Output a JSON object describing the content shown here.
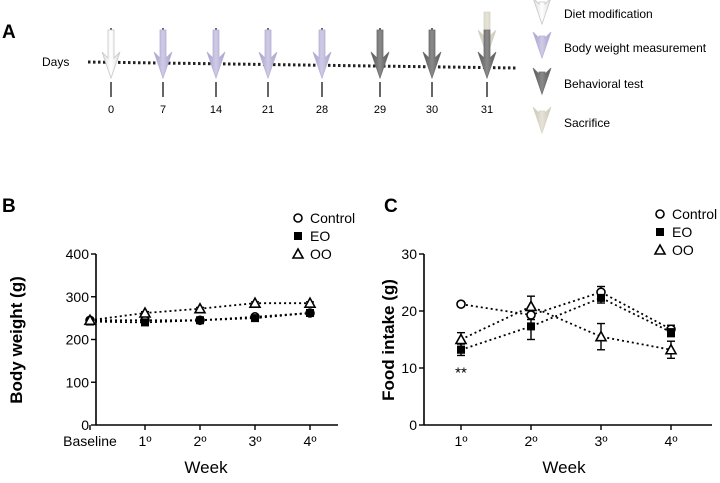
{
  "timeline": {
    "panel_letter": "A",
    "axis_label": "Days",
    "days": [
      "0",
      "7",
      "14",
      "21",
      "28",
      "29",
      "30",
      "31"
    ],
    "events": [
      {
        "day_index": 0,
        "kinds": [
          "diet"
        ]
      },
      {
        "day_index": 1,
        "kinds": [
          "weight"
        ]
      },
      {
        "day_index": 2,
        "kinds": [
          "weight"
        ]
      },
      {
        "day_index": 3,
        "kinds": [
          "weight"
        ]
      },
      {
        "day_index": 4,
        "kinds": [
          "weight"
        ]
      },
      {
        "day_index": 5,
        "kinds": [
          "behavior"
        ]
      },
      {
        "day_index": 6,
        "kinds": [
          "behavior"
        ]
      },
      {
        "day_index": 7,
        "kinds": [
          "sacrifice",
          "behavior"
        ]
      }
    ],
    "legend": [
      {
        "key": "diet",
        "label": "Diet modification",
        "color": "#ffffff",
        "stroke": "#c8c8c8"
      },
      {
        "key": "weight",
        "label": "Body weight measurement",
        "color": "#b7b2d6",
        "stroke": "#b7b2d6"
      },
      {
        "key": "behavior",
        "label": "Behavioral test",
        "color": "#6e6e6e",
        "stroke": "#6e6e6e"
      },
      {
        "key": "sacrifice",
        "label": "Sacrifice",
        "color": "#d8d5c6",
        "stroke": "#d8d5c6"
      }
    ]
  },
  "chart_data": [
    {
      "panel_letter": "B",
      "type": "line",
      "title": "",
      "xlabel": "Week",
      "ylabel": "Body weight (g)",
      "categories": [
        "Baseline",
        "1º",
        "2º",
        "3º",
        "4º"
      ],
      "ylim": [
        0,
        400
      ],
      "yticks": [
        0,
        100,
        200,
        300,
        400
      ],
      "grid": false,
      "legend_position": "top-right",
      "series": [
        {
          "name": "Control",
          "marker": "circle",
          "values": [
            245,
            245,
            245,
            253,
            262
          ],
          "errors": [
            3,
            3,
            3,
            3,
            3
          ]
        },
        {
          "name": "EO",
          "marker": "square",
          "values": [
            242,
            240,
            245,
            250,
            262
          ],
          "errors": [
            3,
            4,
            3,
            3,
            3
          ]
        },
        {
          "name": "OO",
          "marker": "triangle",
          "values": [
            245,
            262,
            272,
            285,
            285
          ],
          "errors": [
            3,
            3,
            3,
            3,
            3
          ]
        }
      ],
      "annotations": []
    },
    {
      "panel_letter": "C",
      "type": "line",
      "title": "",
      "xlabel": "Week",
      "ylabel": "Food intake (g)",
      "categories": [
        "1º",
        "2º",
        "3º",
        "4º"
      ],
      "ylim": [
        0,
        30
      ],
      "yticks": [
        0,
        10,
        20,
        30
      ],
      "grid": false,
      "legend_position": "top-right",
      "series": [
        {
          "name": "Control",
          "marker": "circle",
          "values": [
            21.2,
            19.3,
            23.3,
            16.8
          ],
          "errors": [
            0.4,
            0.8,
            1.0,
            0.7
          ]
        },
        {
          "name": "EO",
          "marker": "square",
          "values": [
            13.2,
            17.3,
            22.3,
            16.3
          ],
          "errors": [
            1.0,
            2.3,
            0.9,
            0.8
          ]
        },
        {
          "name": "OO",
          "marker": "triangle",
          "values": [
            15.0,
            20.8,
            15.5,
            13.2
          ],
          "errors": [
            1.2,
            1.8,
            2.3,
            1.5
          ]
        }
      ],
      "annotations": [
        {
          "text": "**",
          "category_index": 0,
          "anchor_value": 11.5
        }
      ]
    }
  ]
}
